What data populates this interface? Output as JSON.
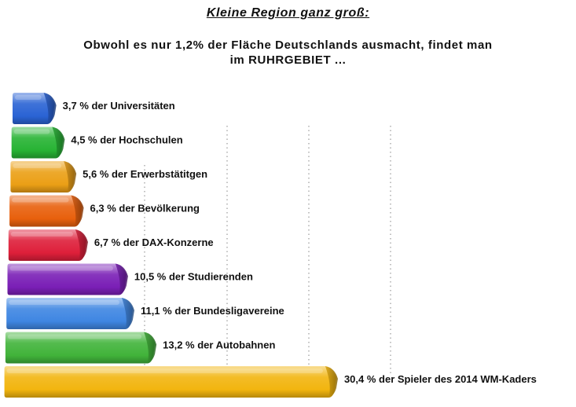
{
  "header": {
    "title": "Kleine Region ganz groß:",
    "subtitle_line1": "Obwohl es nur 1,2% der Fläche Deutschlands ausmacht, findet man",
    "subtitle_line2": "im RUHRGEBIET ..."
  },
  "chart_data": {
    "type": "bar",
    "orientation": "horizontal",
    "title": "Kleine Region ganz groß:",
    "subtitle": "Obwohl es nur 1,2% der Fläche Deutschlands ausmacht, findet man im RUHRGEBIET ...",
    "categories": [
      "3,7 % der Universitäten",
      "4,5 % der Hochschulen",
      "5,6 % der Erwerbstätitgen",
      "6,3 % der Bevölkerung",
      "6,7 % der DAX-Konzerne",
      "10,5 % der Studierenden",
      "11,1 % der Bundesligavereine",
      "13,2 % der Autobahnen",
      "30,4 % der Spieler des 2014 WM-Kaders"
    ],
    "values": [
      3.7,
      4.5,
      5.6,
      6.3,
      6.7,
      10.5,
      11.1,
      13.2,
      30.4
    ],
    "colors": [
      "#2a63d4",
      "#27b334",
      "#eb9f16",
      "#e8600d",
      "#de1f3a",
      "#7a1fb6",
      "#3f86e2",
      "#41b33a",
      "#f2b50f"
    ],
    "xlim": [
      0,
      31
    ],
    "grid": "vertical-dotted",
    "legend": "none"
  }
}
